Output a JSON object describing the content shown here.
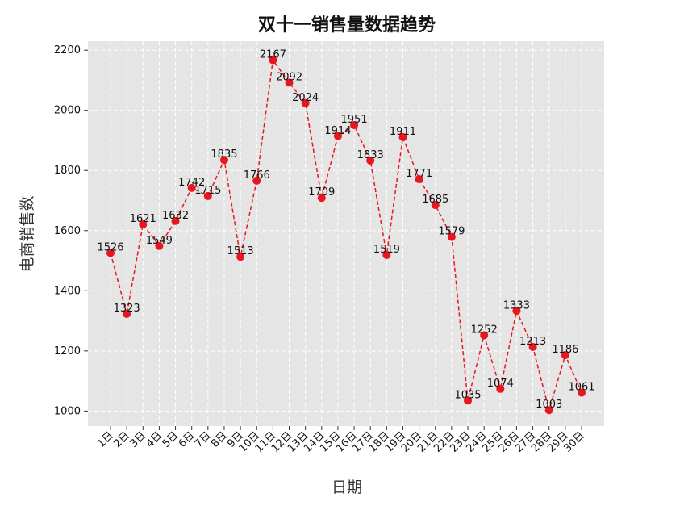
{
  "chart_data": {
    "type": "line",
    "title": "双十一销售量数据趋势",
    "xlabel": "日期",
    "ylabel": "电商销售数",
    "categories": [
      "1日",
      "2日",
      "3日",
      "4日",
      "5日",
      "6日",
      "7日",
      "8日",
      "9日",
      "10日",
      "11日",
      "12日",
      "13日",
      "14日",
      "15日",
      "16日",
      "17日",
      "18日",
      "19日",
      "20日",
      "21日",
      "22日",
      "23日",
      "24日",
      "25日",
      "26日",
      "27日",
      "28日",
      "29日",
      "30日"
    ],
    "series": [
      {
        "values": [
          1526,
          1323,
          1621,
          1549,
          1632,
          1742,
          1715,
          1835,
          1513,
          1766,
          2167,
          2092,
          2024,
          1709,
          1914,
          1951,
          1833,
          1519,
          1911,
          1771,
          1685,
          1579,
          1035,
          1252,
          1074,
          1333,
          1213,
          1003,
          1186,
          1061
        ],
        "color": "#e8171f",
        "line_style": "dashed",
        "marker": "circle"
      }
    ],
    "ylim": [
      950,
      2230
    ],
    "yticks": [
      1000,
      1200,
      1400,
      1600,
      1800,
      2000,
      2200
    ],
    "grid": true,
    "grid_style": "dashed",
    "background": "#e5e5e5",
    "data_labels": true,
    "x_tick_rotation": 45
  }
}
